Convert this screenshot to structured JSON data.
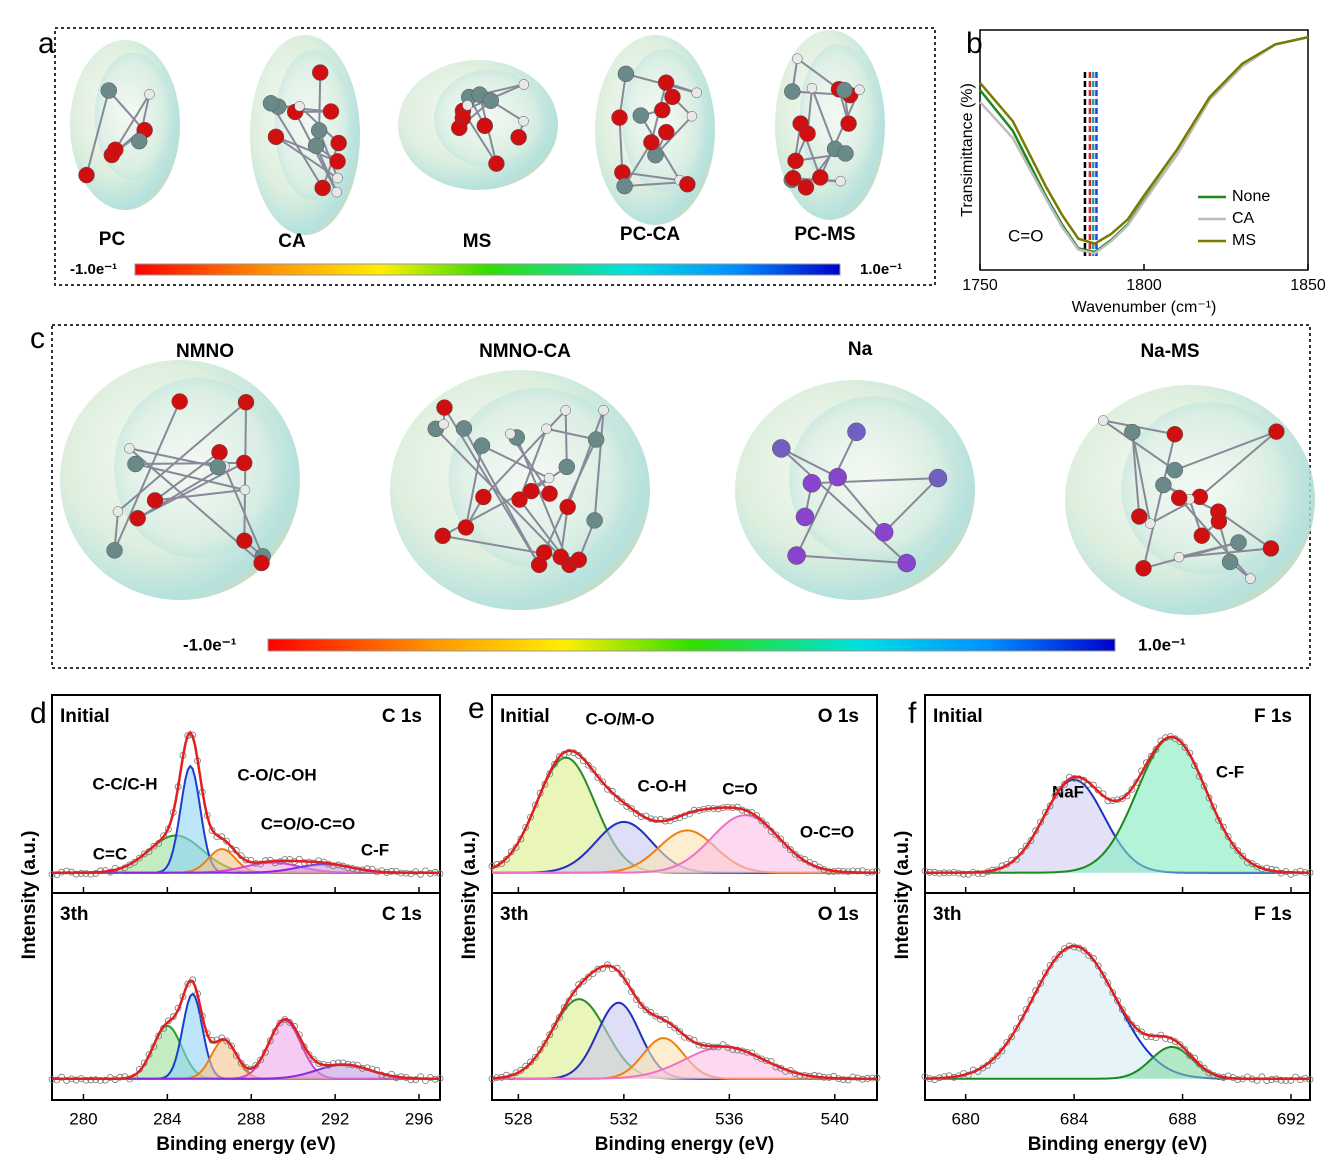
{
  "panel_labels": [
    "a",
    "b",
    "c",
    "d",
    "e",
    "f"
  ],
  "panel_a": {
    "molecules": [
      "PC",
      "CA",
      "MS",
      "PC-CA",
      "PC-MS"
    ],
    "colorbar_min": "-1.0e⁻¹",
    "colorbar_max": "1.0e⁻¹"
  },
  "panel_c": {
    "molecules": [
      "NMNO",
      "NMNO-CA",
      "Na",
      "Na-MS"
    ],
    "colorbar_min": "-1.0e⁻¹",
    "colorbar_max": "1.0e⁻¹"
  },
  "chart_data": [
    {
      "type": "line",
      "x_label": "Wavenumber (cm⁻¹)",
      "y_label": "Transimittance (%)",
      "annotation": "C=O",
      "xlim": [
        1750,
        1850
      ],
      "xticks": [
        1750,
        1800,
        1850
      ],
      "ylim": [
        0,
        1
      ],
      "legend": "lower right",
      "x": [
        1750,
        1760,
        1770,
        1775,
        1780,
        1785,
        1790,
        1795,
        1800,
        1810,
        1820,
        1830,
        1840,
        1850
      ],
      "series": [
        {
          "name": "None",
          "color": "#1a8a1a",
          "values": [
            0.75,
            0.58,
            0.31,
            0.19,
            0.09,
            0.075,
            0.125,
            0.19,
            0.29,
            0.48,
            0.71,
            0.85,
            0.94,
            0.97
          ]
        },
        {
          "name": "CA",
          "color": "#bdbdbd",
          "values": [
            0.7,
            0.55,
            0.3,
            0.18,
            0.085,
            0.07,
            0.12,
            0.185,
            0.285,
            0.48,
            0.71,
            0.85,
            0.94,
            0.97
          ]
        },
        {
          "name": "MS",
          "color": "#7a7a00",
          "values": [
            0.78,
            0.62,
            0.35,
            0.23,
            0.13,
            0.11,
            0.15,
            0.21,
            0.31,
            0.5,
            0.72,
            0.86,
            0.94,
            0.97
          ]
        }
      ],
      "reference_lines": [
        {
          "x": 1782,
          "color": "#000000"
        },
        {
          "x": 1783.5,
          "color": "#e02020"
        },
        {
          "x": 1784.5,
          "color": "#20a0a0"
        },
        {
          "x": 1785.5,
          "color": "#2040e0"
        }
      ]
    },
    {
      "type": "area",
      "y_label": "Intensity (a.u.)",
      "x_label": "Binding energy (eV)",
      "xlim": [
        278.5,
        297
      ],
      "xticks": [
        280,
        284,
        288,
        292,
        296
      ],
      "ylim": [
        -0.12,
        1.05
      ],
      "envelope_color": "#e02020",
      "subplots": [
        {
          "title": "Initial",
          "core_level": "C 1s",
          "peaks": [
            {
              "name": "C=C",
              "center": 284.4,
              "height": 0.22,
              "fwhm": 3,
              "color": "#2a9a2a",
              "fill": "#9be09b"
            },
            {
              "name": "C-C/C-H",
              "center": 285.1,
              "height": 0.63,
              "fwhm": 1.1,
              "color": "#1a3fd0",
              "fill": "#8fd3f5"
            },
            {
              "name": "C-O/C-OH",
              "center": 286.6,
              "height": 0.14,
              "fwhm": 1.5,
              "color": "#f07f10",
              "fill": "#f7c38a"
            },
            {
              "name": "C=O/O-C=O",
              "center": 289,
              "height": 0.06,
              "fwhm": 3,
              "color": "#e040d0",
              "fill": "#f0a8e8"
            },
            {
              "name": "C-F",
              "center": 291.5,
              "height": 0.05,
              "fwhm": 3,
              "color": "#8a2be2",
              "fill": "#c59be0"
            }
          ]
        },
        {
          "title": "3th",
          "core_level": "C 1s",
          "peaks": [
            {
              "center": 284,
              "height": 0.3,
              "fwhm": 1.6,
              "color": "#2a9a2a",
              "fill": "#9be09b"
            },
            {
              "center": 285.2,
              "height": 0.48,
              "fwhm": 1.1,
              "color": "#1a3fd0",
              "fill": "#8fd3f5"
            },
            {
              "center": 286.7,
              "height": 0.22,
              "fwhm": 1.4,
              "color": "#f07f10",
              "fill": "#f7c38a"
            },
            {
              "center": 289.6,
              "height": 0.33,
              "fwhm": 1.8,
              "color": "#e040d0",
              "fill": "#f0a8e8"
            },
            {
              "center": 292.4,
              "height": 0.08,
              "fwhm": 3,
              "color": "#8a2be2",
              "fill": "#c59be0"
            }
          ]
        }
      ]
    },
    {
      "type": "area",
      "y_label": "Intensity (a.u.)",
      "x_label": "Binding energy (eV)",
      "xlim": [
        527,
        541.6
      ],
      "xticks": [
        528,
        532,
        536,
        540
      ],
      "ylim": [
        -0.12,
        1.05
      ],
      "envelope_color": "#e02020",
      "subplots": [
        {
          "title": "Initial",
          "core_level": "O 1s",
          "peaks": [
            {
              "name": "C-O/M-O",
              "center": 529.8,
              "height": 0.68,
              "fwhm": 2.6,
              "color": "#2a8a2a",
              "fill": "#dcf08a"
            },
            {
              "name": "C-O-H",
              "center": 532,
              "height": 0.3,
              "fwhm": 2.5,
              "color": "#2030c0",
              "fill": "#c8c8f0"
            },
            {
              "name": "C=O",
              "center": 534.4,
              "height": 0.25,
              "fwhm": 2.5,
              "color": "#f08010",
              "fill": "#fde3b0"
            },
            {
              "name": "O-C=O",
              "center": 536.6,
              "height": 0.34,
              "fwhm": 3,
              "color": "#f070c8",
              "fill": "#fac0e6"
            }
          ]
        },
        {
          "title": "3th",
          "core_level": "O 1s",
          "peaks": [
            {
              "center": 530.3,
              "height": 0.45,
              "fwhm": 2.4,
              "color": "#2a8a2a",
              "fill": "#dcf08a"
            },
            {
              "center": 531.8,
              "height": 0.43,
              "fwhm": 1.9,
              "color": "#2030c0",
              "fill": "#c8c8f0"
            },
            {
              "center": 533.5,
              "height": 0.23,
              "fwhm": 1.8,
              "color": "#f08010",
              "fill": "#fde3b0"
            },
            {
              "center": 535.8,
              "height": 0.18,
              "fwhm": 3.5,
              "color": "#f070c8",
              "fill": "#fac0e6"
            }
          ]
        }
      ]
    },
    {
      "type": "area",
      "y_label": "Intensity (a.u.)",
      "x_label": "Binding energy (eV)",
      "xlim": [
        678.5,
        692.7
      ],
      "xticks": [
        680,
        684,
        688,
        692
      ],
      "ylim": [
        -0.12,
        1.05
      ],
      "envelope_color": "#e02020",
      "subplots": [
        {
          "title": "Initial",
          "core_level": "F 1s",
          "peaks": [
            {
              "name": "NaF",
              "center": 684,
              "height": 0.55,
              "fwhm": 2.6,
              "color": "#2030c0",
              "fill": "#d0cdf0"
            },
            {
              "name": "C-F",
              "center": 687.6,
              "height": 0.8,
              "fwhm": 3,
              "color": "#1a8a1a",
              "fill": "#80ecc0"
            }
          ]
        },
        {
          "title": "3th",
          "core_level": "F 1s",
          "peaks": [
            {
              "center": 684,
              "height": 0.75,
              "fwhm": 3.6,
              "color": "#1030d0",
              "fill": "#d5ecf7"
            },
            {
              "center": 687.6,
              "height": 0.18,
              "fwhm": 1.8,
              "color": "#1a8a1a",
              "fill": "#80d8a0"
            }
          ]
        }
      ]
    }
  ]
}
